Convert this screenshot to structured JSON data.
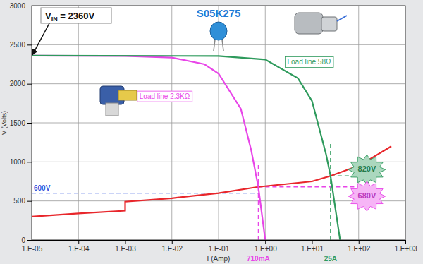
{
  "chart_data": {
    "type": "line",
    "title": "S05K275",
    "x_label": "I (Amp)",
    "y_label": "V (Volts)",
    "log": "x",
    "grid": true,
    "xlim": [
      1e-05,
      1000
    ],
    "ylim": [
      0,
      3000
    ],
    "xticks": [
      {
        "value": 1e-05,
        "label": "1.E-05"
      },
      {
        "value": 0.0001,
        "label": "1.E-04"
      },
      {
        "value": 0.001,
        "label": "1.E-03"
      },
      {
        "value": 0.01,
        "label": "1.E-02"
      },
      {
        "value": 0.1,
        "label": "1.E-01"
      },
      {
        "value": 1,
        "label": "1.E+00"
      },
      {
        "value": 10,
        "label": "1.E+01"
      },
      {
        "value": 100,
        "label": "1.E+02"
      },
      {
        "value": 1000,
        "label": "1.E+03"
      }
    ],
    "yticks": [
      0,
      500,
      1000,
      1500,
      2000,
      2500,
      3000
    ],
    "vin": {
      "parts": [
        "V",
        "IN",
        " = 2360V"
      ],
      "value": 2360
    },
    "series": [
      {
        "color": "#e8262b",
        "x": [
          1e-05,
          0.0001,
          0.001,
          0.001,
          0.01,
          0.1,
          0.71,
          10,
          25,
          100,
          500
        ],
        "values": [
          300,
          340,
          375,
          490,
          535,
          600,
          680,
          750,
          820,
          950,
          1200
        ]
      },
      {
        "name": "Load line 2.3KΩ",
        "color": "#e845e8",
        "label_at": [
          0.007,
          1830
        ],
        "x": [
          1e-05,
          0.001,
          0.01,
          0.05,
          0.1,
          0.3,
          0.5,
          0.71,
          1
        ],
        "values": [
          2360,
          2355,
          2335,
          2250,
          2130,
          1680,
          1150,
          680,
          0
        ]
      },
      {
        "name": "Load line 58Ω",
        "color": "#2e9a5c",
        "label_at": [
          8.7,
          2270
        ],
        "x": [
          1e-05,
          0.1,
          1,
          5,
          10,
          20,
          25,
          30,
          40
        ],
        "values": [
          2360,
          2355,
          2310,
          2070,
          1780,
          1100,
          820,
          500,
          0
        ]
      }
    ],
    "reference_lines": [
      {
        "label": "600V",
        "axis": "y",
        "value": 600,
        "span": [
          1e-05,
          0.71
        ],
        "color": "#3355dd",
        "line_style": "dashed"
      },
      {
        "label": "710mA",
        "axis": "x",
        "value": 0.71,
        "span": [
          0,
          1000
        ],
        "color": "#e845e8",
        "line_style": "dashed"
      },
      {
        "label": "25A",
        "axis": "x",
        "value": 25,
        "span": [
          0,
          1250
        ],
        "color": "#2e9a5c",
        "line_style": "dashed"
      },
      {
        "label": "820V",
        "axis": "y",
        "value": 820,
        "span": [
          25,
          150
        ],
        "label_at": [
          150,
          900
        ],
        "color": "#2e9a5c",
        "line_style": "dashed"
      },
      {
        "label": "680V",
        "axis": "y",
        "value": 680,
        "span": [
          0.71,
          150
        ],
        "label_at": [
          150,
          560
        ],
        "color": "#e845e8",
        "line_style": "dashed"
      }
    ]
  }
}
